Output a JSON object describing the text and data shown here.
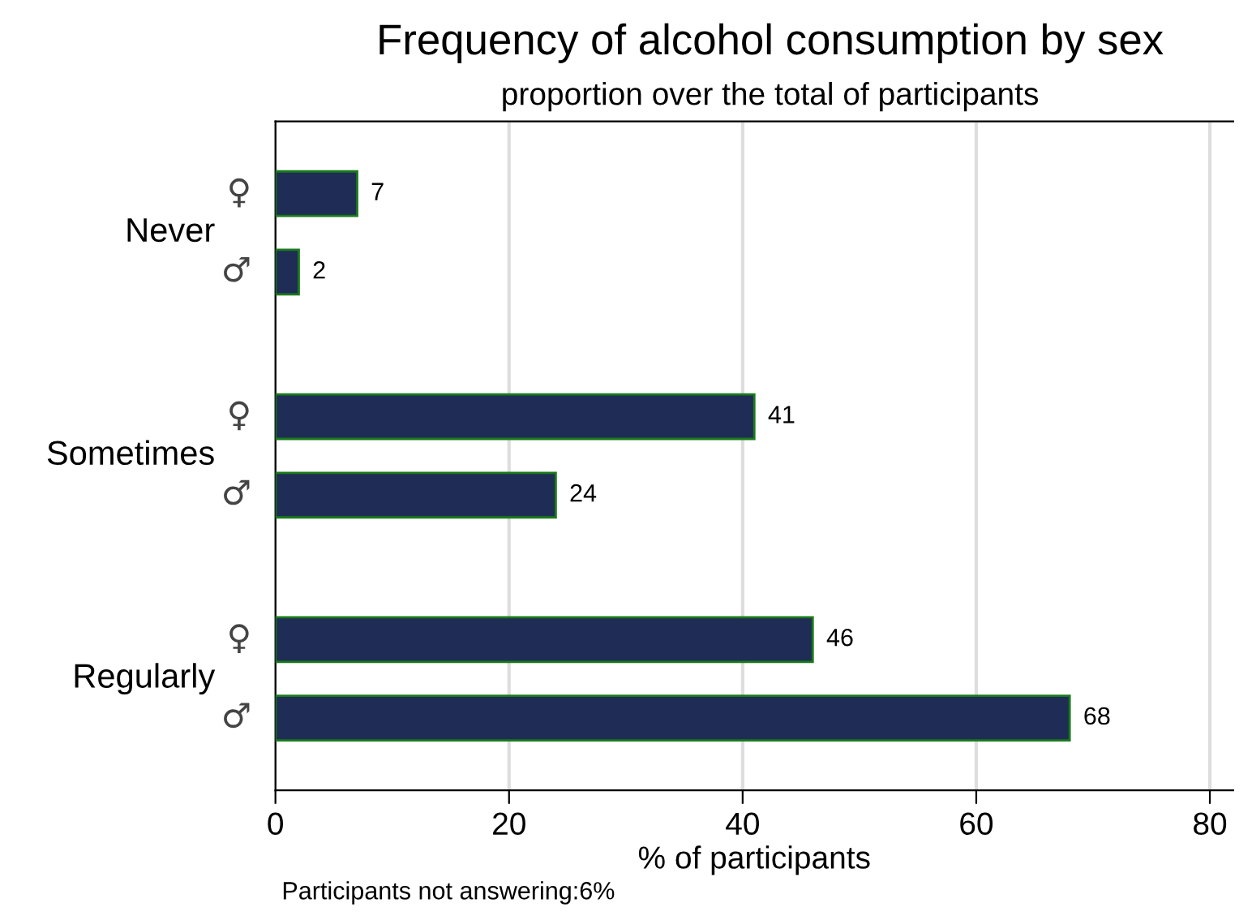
{
  "chart_data": {
    "type": "bar",
    "orientation": "horizontal",
    "title": "Frequency of alcohol consumption by sex",
    "subtitle": "proportion over the total of participants",
    "xlabel": "% of participants",
    "categories": [
      "Never",
      "Sometimes",
      "Regularly"
    ],
    "series": [
      {
        "name": "♀",
        "color": "#1f2d56",
        "values": [
          7,
          41,
          46
        ]
      },
      {
        "name": "♂",
        "color": "#1f2d56",
        "values": [
          2,
          24,
          68
        ]
      }
    ],
    "xlim": [
      0,
      82
    ],
    "xticks": [
      0,
      20,
      40,
      60,
      80
    ],
    "grid": "x",
    "data_labels": true,
    "legend": false,
    "annotations": [
      "Participants not answering:6%"
    ]
  }
}
